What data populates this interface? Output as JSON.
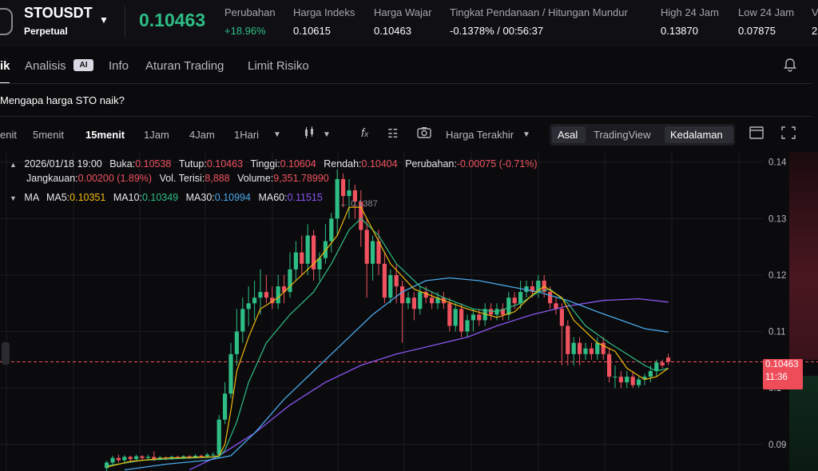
{
  "header": {
    "symbol": "STOUSDT",
    "contract": "Perpetual",
    "last_price": "0.10463",
    "stats": [
      {
        "label": "Perubahan",
        "value": "+18.96%"
      },
      {
        "label": "Harga Indeks",
        "value": "0.10615"
      },
      {
        "label": "Harga Wajar",
        "value": "0.10463"
      },
      {
        "label": "Tingkat Pendanaan / Hitungan Mundur",
        "value": "-0.1378% / 00:56:37"
      },
      {
        "label": "High 24 Jam",
        "value": "0.13870"
      },
      {
        "label": "Low 24 Jam",
        "value": "0.07875"
      },
      {
        "label": "V",
        "value": "2"
      }
    ]
  },
  "tabs": [
    "ik",
    "Analisis",
    "Info",
    "Aturan Trading",
    "Limit Risiko"
  ],
  "ai_badge": "AI",
  "question": "Mengapa harga STO naik?",
  "timeframes": [
    "enit",
    "5menit",
    "15menit",
    "1Jam",
    "4Jam",
    "1Hari"
  ],
  "toolbar": {
    "price_type": "Harga Terakhir",
    "views": [
      "Asal",
      "TradingView",
      "Kedalaman"
    ]
  },
  "ohlc": {
    "time": "2026/01/18 19:00",
    "open_label": "Buka:",
    "open": "0.10538",
    "close_label": "Tutup:",
    "close": "0.10463",
    "high_label": "Tinggi:",
    "high": "0.10604",
    "low_label": "Rendah:",
    "low": "0.10404",
    "change_label": "Perubahan:",
    "change": "-0.00075 (-0.71%)",
    "range_label": "Jangkauan:",
    "range": "0.00200 (1.89%)",
    "fill_vol_label": "Vol. Terisi:",
    "fill_vol": "8,888",
    "volume_label": "Volume:",
    "volume": "9,351.78990"
  },
  "ma": {
    "label": "MA",
    "items": [
      {
        "name": "MA5:",
        "value": "0.10351",
        "color": "#f0b90b"
      },
      {
        "name": "MA10:",
        "value": "0.10349",
        "color": "#2ebd85"
      },
      {
        "name": "MA30:",
        "value": "0.10994",
        "color": "#4aa8e8"
      },
      {
        "name": "MA60:",
        "value": "0.11515",
        "color": "#8b55f0"
      }
    ]
  },
  "price_tag": {
    "price": "0.10463",
    "countdown": "11:36"
  },
  "colors": {
    "up": "#2ebd85",
    "down": "#f0525f",
    "ma5": "#f0b90b",
    "ma10": "#2ebd85",
    "ma30": "#4aa8e8",
    "ma60": "#8b55f0"
  },
  "chart_data": {
    "type": "candlestick",
    "ylim": [
      0.0853,
      0.1418
    ],
    "yticks": [
      "0.14",
      "0.13",
      "0.12",
      "0.11",
      "0.1",
      "0.09"
    ],
    "max_marker": "0.1387",
    "current_price": 0.10463,
    "candles": [
      [
        0.0858,
        0.0868,
        0.085,
        0.0871
      ],
      [
        0.0868,
        0.0876,
        0.0864,
        0.088
      ],
      [
        0.0876,
        0.0872,
        0.0868,
        0.0882
      ],
      [
        0.0872,
        0.0878,
        0.0868,
        0.0881
      ],
      [
        0.0878,
        0.0874,
        0.087,
        0.088
      ],
      [
        0.0874,
        0.0879,
        0.0871,
        0.0882
      ],
      [
        0.0879,
        0.0876,
        0.0872,
        0.0881
      ],
      [
        0.0876,
        0.0878,
        0.0873,
        0.0882
      ],
      [
        0.0878,
        0.0874,
        0.087,
        0.0888
      ],
      [
        0.0874,
        0.0877,
        0.0872,
        0.088
      ],
      [
        0.0877,
        0.0875,
        0.0872,
        0.0879
      ],
      [
        0.0875,
        0.0878,
        0.0873,
        0.088
      ],
      [
        0.0878,
        0.0876,
        0.0874,
        0.088
      ],
      [
        0.0876,
        0.0879,
        0.0874,
        0.0881
      ],
      [
        0.0879,
        0.0877,
        0.0874,
        0.0881
      ],
      [
        0.0877,
        0.088,
        0.0875,
        0.0883
      ],
      [
        0.088,
        0.0879,
        0.0876,
        0.0882
      ],
      [
        0.0879,
        0.0882,
        0.0876,
        0.0885
      ],
      [
        0.0882,
        0.0882,
        0.0878,
        0.0886
      ],
      [
        0.0882,
        0.0944,
        0.088,
        0.0952
      ],
      [
        0.0944,
        0.099,
        0.0936,
        0.101
      ],
      [
        0.099,
        0.106,
        0.0982,
        0.108
      ],
      [
        0.106,
        0.11,
        0.104,
        0.114
      ],
      [
        0.11,
        0.114,
        0.108,
        0.116
      ],
      [
        0.114,
        0.115,
        0.111,
        0.118
      ],
      [
        0.115,
        0.116,
        0.112,
        0.119
      ],
      [
        0.116,
        0.117,
        0.113,
        0.121
      ],
      [
        0.117,
        0.116,
        0.115,
        0.12
      ],
      [
        0.116,
        0.115,
        0.114,
        0.118
      ],
      [
        0.115,
        0.118,
        0.114,
        0.12
      ],
      [
        0.118,
        0.117,
        0.115,
        0.12
      ],
      [
        0.117,
        0.121,
        0.116,
        0.124
      ],
      [
        0.121,
        0.124,
        0.119,
        0.126
      ],
      [
        0.124,
        0.122,
        0.12,
        0.127
      ],
      [
        0.122,
        0.127,
        0.12,
        0.129
      ],
      [
        0.127,
        0.121,
        0.119,
        0.128
      ],
      [
        0.121,
        0.123,
        0.119,
        0.124
      ],
      [
        0.123,
        0.126,
        0.122,
        0.129
      ],
      [
        0.126,
        0.13,
        0.124,
        0.131
      ],
      [
        0.13,
        0.137,
        0.127,
        0.1387
      ],
      [
        0.137,
        0.134,
        0.132,
        0.138
      ],
      [
        0.134,
        0.135,
        0.13,
        0.137
      ],
      [
        0.135,
        0.133,
        0.13,
        0.136
      ],
      [
        0.133,
        0.128,
        0.125,
        0.135
      ],
      [
        0.128,
        0.122,
        0.116,
        0.13
      ],
      [
        0.122,
        0.126,
        0.119,
        0.127
      ],
      [
        0.126,
        0.122,
        0.12,
        0.128
      ],
      [
        0.122,
        0.116,
        0.115,
        0.124
      ],
      [
        0.116,
        0.12,
        0.115,
        0.121
      ],
      [
        0.12,
        0.118,
        0.115,
        0.122
      ],
      [
        0.118,
        0.115,
        0.108,
        0.119
      ],
      [
        0.115,
        0.116,
        0.114,
        0.117
      ],
      [
        0.116,
        0.114,
        0.112,
        0.117
      ],
      [
        0.114,
        0.117,
        0.113,
        0.118
      ],
      [
        0.117,
        0.116,
        0.115,
        0.118
      ],
      [
        0.116,
        0.115,
        0.114,
        0.117
      ],
      [
        0.115,
        0.116,
        0.114,
        0.117
      ],
      [
        0.116,
        0.115,
        0.114,
        0.117
      ],
      [
        0.115,
        0.111,
        0.11,
        0.116
      ],
      [
        0.111,
        0.114,
        0.11,
        0.115
      ],
      [
        0.114,
        0.11,
        0.109,
        0.115
      ],
      [
        0.11,
        0.112,
        0.109,
        0.113
      ],
      [
        0.112,
        0.113,
        0.11,
        0.114
      ],
      [
        0.113,
        0.112,
        0.111,
        0.114
      ],
      [
        0.112,
        0.114,
        0.111,
        0.115
      ],
      [
        0.114,
        0.113,
        0.112,
        0.115
      ],
      [
        0.113,
        0.114,
        0.112,
        0.115
      ],
      [
        0.114,
        0.113,
        0.112,
        0.115
      ],
      [
        0.113,
        0.116,
        0.112,
        0.117
      ],
      [
        0.116,
        0.115,
        0.114,
        0.117
      ],
      [
        0.115,
        0.117,
        0.114,
        0.119
      ],
      [
        0.117,
        0.118,
        0.116,
        0.119
      ],
      [
        0.118,
        0.117,
        0.116,
        0.119
      ],
      [
        0.117,
        0.119,
        0.116,
        0.12
      ],
      [
        0.119,
        0.117,
        0.116,
        0.12
      ],
      [
        0.117,
        0.115,
        0.114,
        0.118
      ],
      [
        0.115,
        0.114,
        0.113,
        0.116
      ],
      [
        0.114,
        0.111,
        0.104,
        0.115
      ],
      [
        0.111,
        0.106,
        0.104,
        0.112
      ],
      [
        0.106,
        0.108,
        0.104,
        0.109
      ],
      [
        0.108,
        0.106,
        0.104,
        0.109
      ],
      [
        0.106,
        0.107,
        0.105,
        0.108
      ],
      [
        0.107,
        0.106,
        0.105,
        0.108
      ],
      [
        0.106,
        0.108,
        0.105,
        0.109
      ],
      [
        0.108,
        0.106,
        0.105,
        0.109
      ],
      [
        0.106,
        0.102,
        0.101,
        0.107
      ],
      [
        0.102,
        0.102,
        0.1,
        0.104
      ],
      [
        0.102,
        0.101,
        0.1,
        0.103
      ],
      [
        0.101,
        0.102,
        0.1,
        0.103
      ],
      [
        0.102,
        0.1005,
        0.1,
        0.103
      ],
      [
        0.1005,
        0.1015,
        0.1,
        0.102
      ],
      [
        0.1015,
        0.102,
        0.1005,
        0.1025
      ],
      [
        0.102,
        0.103,
        0.101,
        0.104
      ],
      [
        0.103,
        0.1045,
        0.102,
        0.105
      ],
      [
        0.1045,
        0.104,
        0.1035,
        0.105
      ],
      [
        0.10538,
        0.10463,
        0.10404,
        0.10604
      ]
    ],
    "ma5_path": [
      [
        0.086,
        0
      ],
      [
        0.087,
        4
      ],
      [
        0.0876,
        10
      ],
      [
        0.0878,
        18
      ],
      [
        0.088,
        19
      ],
      [
        0.09,
        20
      ],
      [
        0.096,
        21
      ],
      [
        0.103,
        22
      ],
      [
        0.109,
        24
      ],
      [
        0.114,
        26
      ],
      [
        0.116,
        29
      ],
      [
        0.119,
        32
      ],
      [
        0.123,
        36
      ],
      [
        0.127,
        39
      ],
      [
        0.132,
        41
      ],
      [
        0.132,
        43
      ],
      [
        0.128,
        45
      ],
      [
        0.122,
        48
      ],
      [
        0.1175,
        52
      ],
      [
        0.1155,
        57
      ],
      [
        0.114,
        61
      ],
      [
        0.1125,
        66
      ],
      [
        0.1135,
        69
      ],
      [
        0.1165,
        72
      ],
      [
        0.118,
        74
      ],
      [
        0.116,
        77
      ],
      [
        0.112,
        79
      ],
      [
        0.108,
        83
      ],
      [
        0.1065,
        86
      ],
      [
        0.1035,
        88
      ],
      [
        0.1015,
        91
      ],
      [
        0.102,
        93
      ],
      [
        0.1035,
        95
      ]
    ],
    "ma10_path": [
      [
        0.0862,
        0
      ],
      [
        0.0872,
        6
      ],
      [
        0.0876,
        14
      ],
      [
        0.0878,
        19
      ],
      [
        0.089,
        20
      ],
      [
        0.094,
        22
      ],
      [
        0.101,
        24
      ],
      [
        0.108,
        27
      ],
      [
        0.113,
        31
      ],
      [
        0.117,
        35
      ],
      [
        0.122,
        38
      ],
      [
        0.128,
        41
      ],
      [
        0.13,
        43
      ],
      [
        0.127,
        46
      ],
      [
        0.122,
        49
      ],
      [
        0.118,
        53
      ],
      [
        0.116,
        57
      ],
      [
        0.114,
        62
      ],
      [
        0.1135,
        66
      ],
      [
        0.115,
        70
      ],
      [
        0.117,
        73
      ],
      [
        0.1175,
        75
      ],
      [
        0.115,
        78
      ],
      [
        0.111,
        81
      ],
      [
        0.108,
        85
      ],
      [
        0.106,
        88
      ],
      [
        0.104,
        91
      ],
      [
        0.103,
        93
      ],
      [
        0.1035,
        95
      ]
    ],
    "ma30_path": [
      [
        0.0855,
        3
      ],
      [
        0.0865,
        10
      ],
      [
        0.0872,
        17
      ],
      [
        0.088,
        21
      ],
      [
        0.092,
        25
      ],
      [
        0.098,
        30
      ],
      [
        0.103,
        35
      ],
      [
        0.108,
        40
      ],
      [
        0.113,
        45
      ],
      [
        0.117,
        50
      ],
      [
        0.119,
        54
      ],
      [
        0.1195,
        58
      ],
      [
        0.119,
        63
      ],
      [
        0.118,
        68
      ],
      [
        0.117,
        73
      ],
      [
        0.1155,
        78
      ],
      [
        0.1135,
        83
      ],
      [
        0.112,
        87
      ],
      [
        0.1105,
        91
      ],
      [
        0.1099,
        95
      ]
    ],
    "ma60_path": [
      [
        0.0855,
        14
      ],
      [
        0.088,
        19
      ],
      [
        0.092,
        25
      ],
      [
        0.097,
        31
      ],
      [
        0.101,
        37
      ],
      [
        0.104,
        43
      ],
      [
        0.106,
        49
      ],
      [
        0.1075,
        55
      ],
      [
        0.109,
        61
      ],
      [
        0.111,
        66
      ],
      [
        0.113,
        72
      ],
      [
        0.1145,
        78
      ],
      [
        0.1155,
        84
      ],
      [
        0.1158,
        90
      ],
      [
        0.1152,
        95
      ]
    ]
  }
}
